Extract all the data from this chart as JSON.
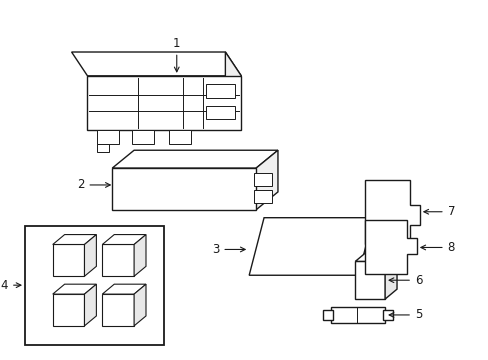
{
  "background_color": "#ffffff",
  "line_color": "#1a1a1a",
  "line_width": 1.0,
  "label_fontsize": 8.5
}
